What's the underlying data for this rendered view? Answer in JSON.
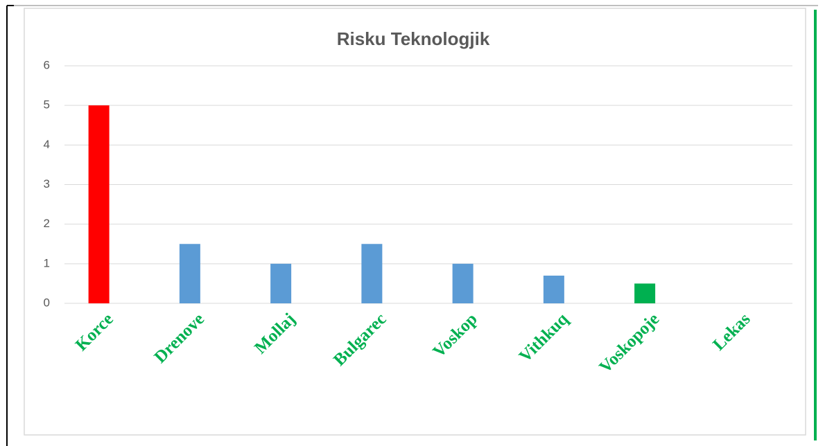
{
  "chart_data": {
    "type": "bar",
    "title": "Risku Teknologjik",
    "categories": [
      "Korce",
      "Drenove",
      "Mollaj",
      "Bulgarec",
      "Voskop",
      "Vithkuq",
      "Voskopoje",
      "Lekas"
    ],
    "values": [
      5,
      1.5,
      1,
      1.5,
      1,
      0.7,
      0.5,
      0
    ],
    "colors": [
      "#ff0000",
      "#5b9bd5",
      "#5b9bd5",
      "#5b9bd5",
      "#5b9bd5",
      "#5b9bd5",
      "#00b050",
      "#5b9bd5"
    ],
    "ylim": [
      0,
      6
    ],
    "yticks": [
      0,
      1,
      2,
      3,
      4,
      5,
      6
    ],
    "grid": true
  }
}
